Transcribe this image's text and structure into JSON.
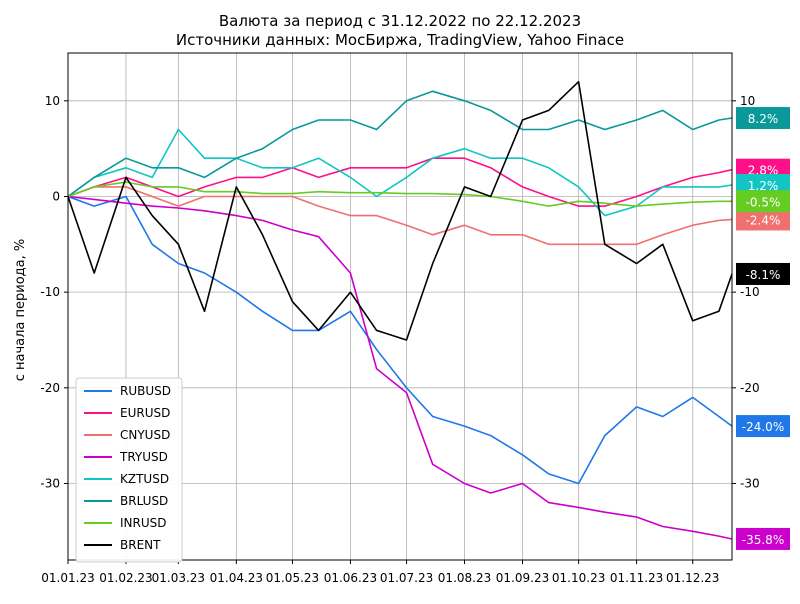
{
  "chart_data": {
    "type": "line",
    "title": "Валюта за период с 31.12.2022 по 22.12.2023",
    "subtitle": "Источники данных: МосБиржа, TradingView, Yahoo Finace",
    "ylabel": "с начала периода, %",
    "xlabel": "",
    "x": [
      "01.01.23",
      "15.01.23",
      "01.02.23",
      "15.02.23",
      "01.03.23",
      "15.03.23",
      "01.04.23",
      "15.04.23",
      "01.05.23",
      "15.05.23",
      "01.06.23",
      "15.06.23",
      "01.07.23",
      "15.07.23",
      "01.08.23",
      "15.08.23",
      "01.09.23",
      "15.09.23",
      "01.10.23",
      "15.10.23",
      "01.11.23",
      "15.11.23",
      "01.12.23",
      "15.12.23",
      "22.12.23"
    ],
    "xtick_labels": [
      "01.01.23",
      "01.02.23",
      "01.03.23",
      "01.04.23",
      "01.05.23",
      "01.06.23",
      "01.07.23",
      "01.08.23",
      "01.09.23",
      "01.10.23",
      "01.11.23",
      "01.12.23"
    ],
    "xlim": [
      "01.01.23",
      "22.12.23"
    ],
    "ylim": [
      -38,
      15
    ],
    "yticks_left": [
      -30,
      -20,
      -10,
      0,
      10
    ],
    "yticks_right": [
      -30,
      -20,
      -10,
      10
    ],
    "grid": true,
    "legend_position": "bottom-left",
    "series": [
      {
        "name": "RUBUSD",
        "color": "#1f77e8",
        "end_label": "-24.0%",
        "values": [
          0,
          -1,
          0,
          -5,
          -7,
          -8,
          -10,
          -12,
          -14,
          -14,
          -12,
          -16,
          -20,
          -23,
          -24,
          -25,
          -27,
          -29,
          -30,
          -25,
          -22,
          -23,
          -21,
          -23,
          -24
        ]
      },
      {
        "name": "EURUSD",
        "color": "#ff0f88",
        "end_label": "2.8%",
        "values": [
          0,
          1,
          2,
          1,
          0,
          1,
          2,
          2,
          3,
          2,
          3,
          3,
          3,
          4,
          4,
          3,
          1,
          0,
          -1,
          -1,
          0,
          1,
          2,
          2.5,
          2.8
        ]
      },
      {
        "name": "CNYUSD",
        "color": "#f07070",
        "end_label": "-2.4%",
        "values": [
          0,
          1,
          1,
          0,
          -1,
          0,
          0,
          0,
          0,
          -1,
          -2,
          -2,
          -3,
          -4,
          -3,
          -4,
          -4,
          -5,
          -5,
          -5,
          -5,
          -4,
          -3,
          -2.5,
          -2.4
        ]
      },
      {
        "name": "TRYUSD",
        "color": "#cc00cc",
        "end_label": "-35.8%",
        "values": [
          0,
          -0.3,
          -0.7,
          -1,
          -1.2,
          -1.5,
          -2,
          -2.5,
          -3.5,
          -4.2,
          -8,
          -18,
          -20.5,
          -28,
          -30,
          -31,
          -30,
          -32,
          -32.5,
          -33,
          -33.5,
          -34.5,
          -35,
          -35.5,
          -35.8
        ]
      },
      {
        "name": "KZTUSD",
        "color": "#11c5c5",
        "end_label": "1.2%",
        "values": [
          0,
          2,
          3,
          2,
          7,
          4,
          4,
          3,
          3,
          4,
          2,
          0,
          2,
          4,
          5,
          4,
          4,
          3,
          1,
          -2,
          -1,
          1,
          1,
          1,
          1.2
        ]
      },
      {
        "name": "BRLUSD",
        "color": "#0a9898",
        "end_label": "8.2%",
        "values": [
          0,
          2,
          4,
          3,
          3,
          2,
          4,
          5,
          7,
          8,
          8,
          7,
          10,
          11,
          10,
          9,
          7,
          7,
          8,
          7,
          8,
          9,
          7,
          8,
          8.2
        ]
      },
      {
        "name": "INRUSD",
        "color": "#66cc22",
        "end_label": "-0.5%",
        "values": [
          0,
          1,
          1.5,
          1,
          1,
          0.5,
          0.5,
          0.3,
          0.3,
          0.5,
          0.4,
          0.4,
          0.3,
          0.3,
          0.2,
          0,
          -0.5,
          -1,
          -0.5,
          -0.7,
          -1,
          -0.8,
          -0.6,
          -0.5,
          -0.5
        ]
      },
      {
        "name": "BRENT",
        "color": "#000000",
        "end_label": "-8.1%",
        "values": [
          0,
          -8,
          2,
          -2,
          -5,
          -12,
          1,
          -4,
          -11,
          -14,
          -10,
          -14,
          -15,
          -7,
          1,
          0,
          8,
          9,
          12,
          -5,
          -7,
          -5,
          -13,
          -12,
          -8.1
        ]
      }
    ]
  }
}
